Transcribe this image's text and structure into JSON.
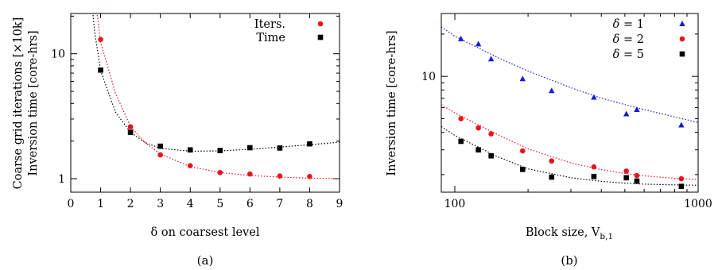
{
  "chart_data": [
    {
      "type": "scatter",
      "panel_label": "(a)",
      "xlabel": "δ on coarsest level",
      "ylabel_lines": [
        "Coarse grid iterations [×10k]",
        "Inversion time [core-hrs]"
      ],
      "x_scale": "linear",
      "y_scale": "log",
      "xlim": [
        0,
        9
      ],
      "ylim": [
        0.78,
        21
      ],
      "x_ticks": [
        "0",
        "1",
        "2",
        "3",
        "4",
        "5",
        "6",
        "7",
        "8",
        "9"
      ],
      "y_ticks": [
        "1",
        "10"
      ],
      "legend": "top-right",
      "grid": false,
      "series": [
        {
          "name": "Iters.",
          "marker": "circle",
          "color": "#e8141b",
          "x": [
            1,
            2,
            3,
            4,
            5,
            6,
            7,
            8
          ],
          "y": [
            13.0,
            2.6,
            1.55,
            1.27,
            1.12,
            1.09,
            1.05,
            1.04
          ],
          "fit": {
            "x": [
              0.85,
              1,
              1.5,
              2,
              2.5,
              3,
              4,
              5,
              6,
              7,
              8,
              9
            ],
            "y": [
              24,
              12.4,
              4.8,
              2.62,
              1.93,
              1.58,
              1.25,
              1.12,
              1.06,
              1.03,
              1.01,
              1.0
            ]
          }
        },
        {
          "name": "Time",
          "marker": "square",
          "color": "#000000",
          "x": [
            1,
            2,
            3,
            4,
            5,
            6,
            7,
            8
          ],
          "y": [
            7.4,
            2.35,
            1.82,
            1.7,
            1.68,
            1.77,
            1.76,
            1.9
          ],
          "fit": {
            "x": [
              0.72,
              0.8,
              1,
              1.5,
              2,
              2.5,
              3,
              4,
              5,
              6,
              7,
              8,
              9
            ],
            "y": [
              24,
              15,
              7.3,
              3.4,
              2.35,
              1.94,
              1.75,
              1.66,
              1.67,
              1.72,
              1.79,
              1.87,
              1.96
            ]
          }
        }
      ]
    },
    {
      "type": "scatter",
      "panel_label": "(b)",
      "xlabel": "Block size, V",
      "xlabel_subscript": "b,1",
      "ylabel": "Inversion time [core-hrs]",
      "x_scale": "log",
      "y_scale": "log",
      "xlim": [
        88,
        1000
      ],
      "ylim": [
        1.5,
        28
      ],
      "x_ticks": [
        "100",
        "1000"
      ],
      "y_ticks": [
        "10"
      ],
      "legend": "top-right",
      "grid": false,
      "series": [
        {
          "name_prefix": "δ = ",
          "name_value": "1",
          "marker": "triangle",
          "color": "#1a1ad6",
          "x": [
            106,
            125,
            141,
            190,
            250,
            373,
            507,
            560,
            853
          ],
          "y": [
            18.5,
            17.0,
            13.3,
            9.6,
            7.9,
            7.1,
            5.4,
            5.8,
            4.5
          ],
          "fit": {
            "x": [
              88,
              100,
              150,
              200,
              300,
              400,
              500,
              600,
              800,
              1000
            ],
            "y": [
              22.5,
              19.3,
              13.6,
              10.9,
              8.3,
              7.0,
              6.3,
              5.8,
              5.15,
              4.7
            ]
          }
        },
        {
          "name_prefix": "δ = ",
          "name_value": "2",
          "marker": "circle",
          "color": "#e8141b",
          "x": [
            106,
            125,
            141,
            190,
            250,
            373,
            507,
            560,
            853
          ],
          "y": [
            5.0,
            4.3,
            3.9,
            2.95,
            2.5,
            2.27,
            2.12,
            1.97,
            1.87
          ],
          "fit": {
            "x": [
              88,
              100,
              150,
              200,
              300,
              400,
              500,
              600,
              800,
              1000
            ],
            "y": [
              6.3,
              5.5,
              3.85,
              3.05,
              2.42,
              2.17,
              2.04,
              1.96,
              1.88,
              1.85
            ]
          }
        },
        {
          "name_prefix": "δ = ",
          "name_value": "5",
          "marker": "square",
          "color": "#000000",
          "x": [
            106,
            125,
            141,
            190,
            250,
            373,
            507,
            560,
            853
          ],
          "y": [
            3.45,
            3.0,
            2.72,
            2.18,
            1.92,
            1.94,
            1.9,
            1.8,
            1.65
          ],
          "fit": {
            "x": [
              88,
              100,
              150,
              200,
              300,
              400,
              500,
              600,
              800,
              1000
            ],
            "y": [
              4.4,
              3.8,
              2.68,
              2.2,
              1.9,
              1.79,
              1.74,
              1.71,
              1.69,
              1.68
            ]
          }
        }
      ]
    }
  ]
}
